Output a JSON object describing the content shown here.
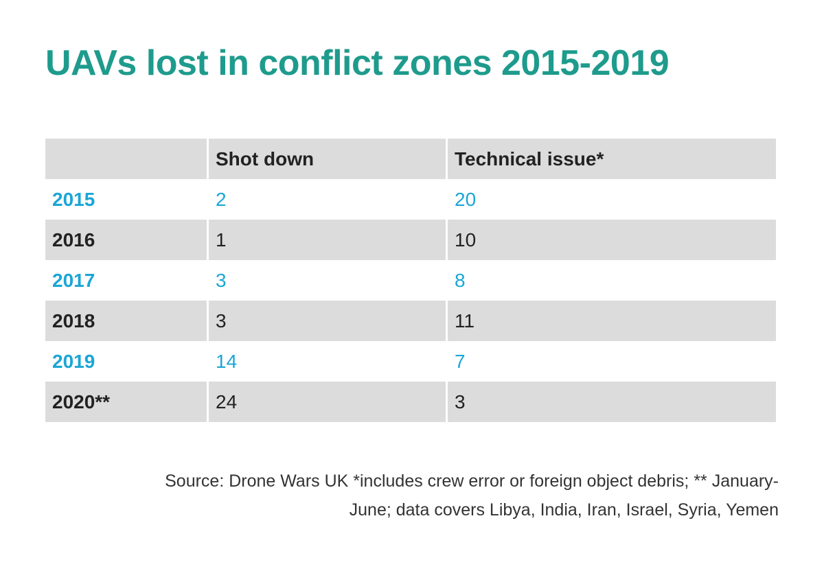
{
  "chart_data": {
    "type": "table",
    "title": "UAVs lost in conflict zones 2015-2019",
    "columns": [
      "",
      "Shot down",
      "Technical issue*"
    ],
    "rows": [
      {
        "year": "2015",
        "shot_down": "2",
        "technical_issue": "20"
      },
      {
        "year": "2016",
        "shot_down": "1",
        "technical_issue": "10"
      },
      {
        "year": "2017",
        "shot_down": "3",
        "technical_issue": "8"
      },
      {
        "year": "2018",
        "shot_down": "3",
        "technical_issue": "11"
      },
      {
        "year": "2019",
        "shot_down": "14",
        "technical_issue": "7"
      },
      {
        "year": "2020**",
        "shot_down": "24",
        "technical_issue": "3"
      }
    ],
    "source_line1": "Source: Drone Wars UK *includes crew error or foreign object debris; ** January-",
    "source_line2": "June; data covers Libya, India, Iran, Israel, Syria, Yemen"
  },
  "colors": {
    "title": "#1e9b8c",
    "highlight_text": "#1aa6d6",
    "band": "#dcdcdc"
  }
}
